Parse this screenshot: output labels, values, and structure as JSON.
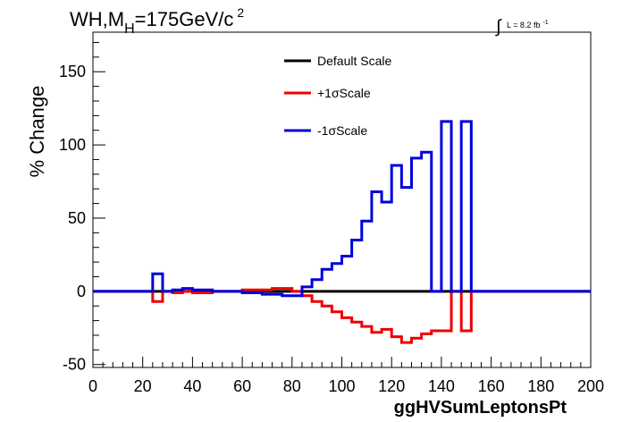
{
  "chart_data": {
    "type": "line",
    "title_main": "WH,M",
    "title_sub": "H",
    "title_rest": "=175GeV/c",
    "title_sup": "2",
    "lumi_integral": "∫",
    "lumi_text": "L = 8.2 fb",
    "lumi_sup": "-1",
    "xlabel": "ggHVSumLeptonsPt",
    "ylabel": "% Change",
    "xlim": [
      0,
      200
    ],
    "ylim": [
      -52,
      177
    ],
    "x_ticks": [
      0,
      20,
      40,
      60,
      80,
      100,
      120,
      140,
      160,
      180,
      200
    ],
    "y_ticks": [
      -50,
      0,
      50,
      100,
      150
    ],
    "bin_edges": [
      0,
      4,
      8,
      12,
      16,
      20,
      24,
      28,
      32,
      36,
      40,
      44,
      48,
      52,
      56,
      60,
      64,
      68,
      72,
      76,
      80,
      84,
      88,
      92,
      96,
      100,
      104,
      108,
      112,
      116,
      120,
      124,
      128,
      132,
      136,
      140,
      144,
      148,
      152,
      156,
      160,
      164,
      168,
      172,
      176,
      180,
      184,
      188,
      192,
      196,
      200
    ],
    "series": [
      {
        "name": "Default Scale",
        "color": "#000000",
        "values": [
          0,
          0,
          0,
          0,
          0,
          0,
          0,
          0,
          0,
          0,
          0,
          0,
          0,
          0,
          0,
          0,
          0,
          0,
          0,
          0,
          0,
          0,
          0,
          0,
          0,
          0,
          0,
          0,
          0,
          0,
          0,
          0,
          0,
          0,
          0,
          0,
          0,
          0,
          0,
          0,
          0,
          0,
          0,
          0,
          0,
          0,
          0,
          0,
          0,
          0
        ]
      },
      {
        "name": "+1σScale",
        "color": "#ee0000",
        "values": [
          0,
          0,
          0,
          0,
          0,
          0,
          -7,
          0,
          -1,
          0,
          -1,
          -1,
          0,
          0,
          0,
          1,
          1,
          1,
          2,
          2,
          0,
          -3,
          -7,
          -10,
          -14,
          -18,
          -21,
          -24,
          -28,
          -26,
          -31,
          -35,
          -32,
          -29,
          -27,
          -27,
          0,
          -27,
          0,
          0,
          0,
          0,
          0,
          0,
          0,
          0,
          0,
          0,
          0,
          0
        ]
      },
      {
        "name": "-1σScale",
        "color": "#0000dd",
        "values": [
          0,
          0,
          0,
          0,
          0,
          0,
          12,
          0,
          1,
          2,
          1,
          1,
          0,
          0,
          0,
          -1,
          -1,
          -2,
          -2,
          -3,
          -3,
          3,
          8,
          15,
          19,
          24,
          35,
          48,
          68,
          61,
          86,
          71,
          91,
          95,
          0,
          116,
          0,
          116,
          0,
          0,
          0,
          0,
          0,
          0,
          0,
          0,
          0,
          0,
          0,
          0
        ]
      }
    ],
    "legend_position": "top-center",
    "grid": false
  }
}
